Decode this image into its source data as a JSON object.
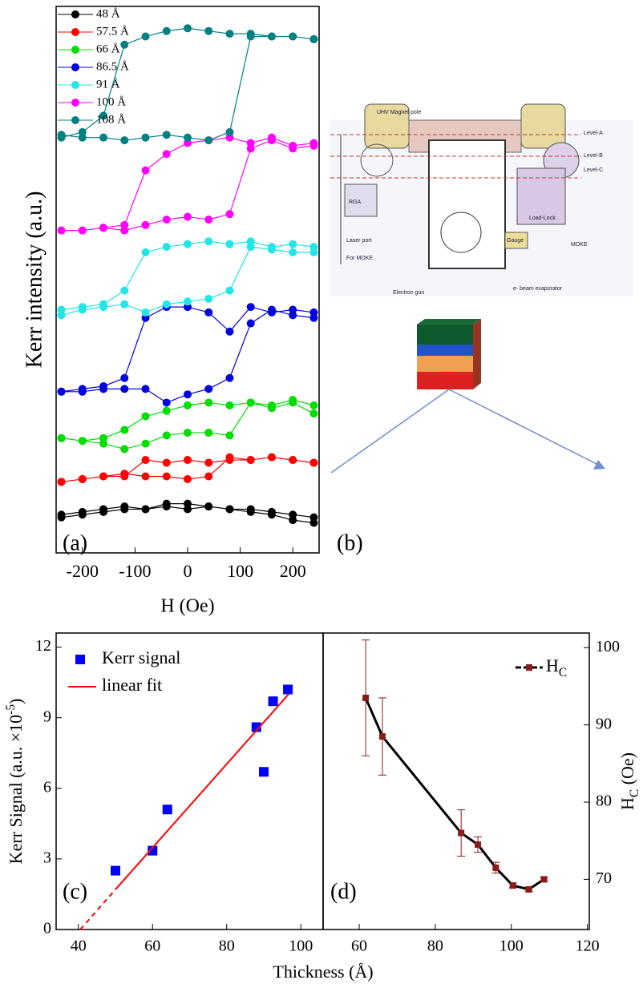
{
  "chart_data": [
    {
      "type": "line",
      "panel_label": "(a)",
      "x_label": "H (Oe)",
      "y_label": "Kerr intensity (a.u.)",
      "xlim": [
        -250,
        250
      ],
      "xticks": [
        -200,
        -100,
        0,
        100,
        200
      ],
      "ylim": [
        0,
        100
      ],
      "x": [
        -240,
        -200,
        -160,
        -120,
        -80,
        -40,
        0,
        40,
        80,
        120,
        160,
        200,
        240,
        240,
        200,
        160,
        120,
        80,
        40,
        0,
        -40,
        -80,
        -120,
        -160,
        -200,
        -240
      ],
      "series": [
        {
          "name": "48 Å",
          "color": "#000000",
          "values": [
            7,
            7.5,
            8,
            8.5,
            8,
            8.5,
            8,
            8.5,
            8,
            7.5,
            7,
            6,
            5.5,
            6.5,
            7,
            7.5,
            8,
            8,
            8.5,
            9,
            9,
            8,
            8,
            7.5,
            7,
            6.5
          ]
        },
        {
          "name": "57.5 Å",
          "color": "#ff0000",
          "values": [
            13,
            13.5,
            14,
            14.5,
            14,
            14,
            13.5,
            14,
            17.5,
            17,
            17.5,
            17,
            16.5,
            16.5,
            17,
            17.5,
            17,
            17,
            16.5,
            17,
            16.5,
            17,
            14,
            14,
            13.5,
            13
          ]
        },
        {
          "name": "66 Å",
          "color": "#00dd00",
          "values": [
            21,
            20.5,
            20,
            19,
            20,
            21.5,
            22,
            22,
            21.5,
            27.5,
            26.5,
            27.5,
            25.5,
            27,
            28,
            27,
            27.5,
            27,
            27.5,
            27,
            26,
            25,
            22.5,
            21,
            20.5,
            21
          ]
        },
        {
          "name": "86.5 Å",
          "color": "#0000dd",
          "values": [
            29.5,
            29.5,
            30,
            30,
            30,
            27.5,
            29,
            30,
            32,
            42,
            44.5,
            43.5,
            43,
            44,
            44.5,
            44,
            45,
            40.5,
            44,
            45,
            45,
            43,
            32,
            30.5,
            30,
            29.5
          ]
        },
        {
          "name": "91 Å",
          "color": "#22e6e6",
          "values": [
            43.5,
            44.5,
            45,
            45.5,
            44,
            45.5,
            46,
            46.5,
            48,
            56,
            55.5,
            55,
            55,
            56,
            56.5,
            56,
            57,
            56.5,
            57,
            56.5,
            56,
            55,
            48,
            45.5,
            45,
            44.5
          ]
        },
        {
          "name": "100 Å",
          "color": "#ff00ff",
          "values": [
            59,
            59,
            59.5,
            59,
            60,
            61,
            61.5,
            61,
            62,
            74,
            75.5,
            74,
            74.5,
            75,
            74.5,
            76,
            75,
            76,
            75.5,
            75,
            73,
            70,
            60,
            59.5,
            59,
            59
          ]
        },
        {
          "name": "108 Å",
          "color": "#008080",
          "values": [
            76.5,
            76,
            76,
            75.5,
            76,
            76.5,
            76,
            75.5,
            77,
            94.5,
            94.5,
            94.5,
            94,
            94,
            94.5,
            94.5,
            95,
            95,
            95.5,
            96,
            95.5,
            94.5,
            93,
            80,
            77,
            76
          ]
        }
      ]
    },
    {
      "type": "scatter",
      "panel_label": "(c)",
      "x_label": "Thickness (Å)",
      "y_label": {
        "text": "Kerr Signal (a.u. ×10",
        "sup": "-5",
        "tail": ")"
      },
      "xlim": [
        34,
        106
      ],
      "xticks": [
        40,
        60,
        80,
        100
      ],
      "ylim": [
        0,
        12.6
      ],
      "yticks": [
        0,
        3,
        6,
        9,
        12
      ],
      "series": [
        {
          "name": "Kerr signal",
          "color": "#0000ff",
          "x": [
            50,
            60,
            64,
            88,
            90,
            92.5,
            96.5
          ],
          "values": [
            2.5,
            3.35,
            5.1,
            8.6,
            6.7,
            9.7,
            10.2
          ]
        },
        {
          "name": "linear fit",
          "color": "#ff0000",
          "x": [
            50,
            96.7
          ],
          "values": [
            1.7,
            10.0
          ]
        }
      ],
      "extrapolation": {
        "color": "#ff0000",
        "x": [
          40.5,
          50
        ],
        "values": [
          0,
          1.7
        ]
      }
    },
    {
      "type": "errorbar",
      "panel_label": "(d)",
      "y2_label": {
        "text": "H",
        "sub": "C",
        "tail": " (Oe)"
      },
      "xlim": [
        50.5,
        120.5
      ],
      "xticks": [
        60,
        80,
        100,
        120
      ],
      "y2lim": [
        63.5,
        101.9
      ],
      "y2ticks": [
        70,
        80,
        90,
        100
      ],
      "series": [
        {
          "name": {
            "text": "H",
            "sub": "C"
          },
          "color": "#8b1a1a",
          "axis": "y2",
          "x": [
            61.7,
            66.1,
            86.8,
            91.2,
            95.9,
            100.4,
            104.6,
            108.6
          ],
          "values": [
            93.5,
            88.5,
            76,
            74.5,
            71.5,
            69.2,
            68.7,
            70
          ],
          "errors": [
            7.5,
            5,
            3,
            1,
            0.7,
            0.3,
            0.3,
            0.3
          ]
        }
      ]
    }
  ],
  "schematic": {
    "panel_label": "(b)",
    "labels": [
      "UHV Magnet pole",
      "Level-A",
      "Level-B",
      "Level-C",
      "RGA",
      "Laser port",
      "For MOKE",
      "Load-Lock",
      "Gauge",
      "MOKE",
      "Electron gun",
      "e- beam evaporator"
    ]
  }
}
